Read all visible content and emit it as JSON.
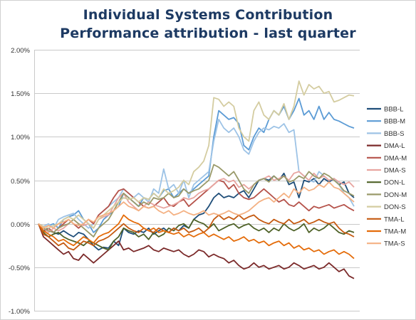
{
  "colors": {
    "title": "#1d3a63",
    "grid": "#c9c9c9",
    "axis_text": "#333333",
    "border": "#d0d0d0"
  },
  "chart_data": {
    "type": "line",
    "title": "Individual Systems Contribution",
    "subtitle": "Performance attribution - last quarter",
    "xlabel": "",
    "ylabel": "",
    "ylim": [
      -1.0,
      2.0
    ],
    "yticks": [
      2.0,
      1.5,
      1.0,
      0.5,
      0.0,
      -0.5,
      -1.0
    ],
    "ytick_labels": [
      "2.00%",
      "1.50%",
      "1.00%",
      "0.50%",
      "0.00%",
      "-0.50%",
      "-1.00%"
    ],
    "grid": true,
    "legend_position": "right",
    "x": [
      0,
      1,
      2,
      3,
      4,
      5,
      6,
      7,
      8,
      9,
      10,
      11,
      12,
      13,
      14,
      15,
      16,
      17,
      18,
      19,
      20,
      21,
      22,
      23,
      24,
      25,
      26,
      27,
      28,
      29,
      30,
      31,
      32,
      33,
      34,
      35,
      36,
      37,
      38,
      39,
      40,
      41,
      42,
      43,
      44,
      45,
      46,
      47,
      48,
      49,
      50,
      51,
      52,
      53,
      54,
      55,
      56,
      57,
      58,
      59,
      60,
      61,
      62,
      63
    ],
    "series": [
      {
        "name": "BBB-L",
        "color": "#1f4e79",
        "values": [
          0.0,
          -0.08,
          -0.05,
          -0.1,
          -0.12,
          -0.08,
          -0.12,
          -0.15,
          -0.1,
          -0.12,
          -0.18,
          -0.25,
          -0.3,
          -0.27,
          -0.28,
          -0.2,
          -0.25,
          -0.05,
          -0.1,
          -0.12,
          -0.08,
          -0.1,
          -0.05,
          -0.12,
          -0.08,
          -0.05,
          -0.1,
          -0.05,
          -0.08,
          -0.02,
          -0.05,
          0.05,
          0.1,
          0.12,
          0.2,
          0.3,
          0.35,
          0.3,
          0.32,
          0.3,
          0.35,
          0.38,
          0.3,
          0.4,
          0.5,
          0.52,
          0.5,
          0.55,
          0.5,
          0.58,
          0.45,
          0.48,
          0.3,
          0.5,
          0.48,
          0.52,
          0.45,
          0.52,
          0.48,
          0.52,
          0.45,
          0.48,
          0.35,
          0.3
        ]
      },
      {
        "name": "BBB-M",
        "color": "#5b9bd5",
        "values": [
          0.0,
          -0.05,
          -0.02,
          0.0,
          -0.05,
          0.05,
          0.08,
          0.1,
          0.15,
          0.05,
          0.0,
          -0.1,
          -0.05,
          0.05,
          0.1,
          0.15,
          0.2,
          0.35,
          0.3,
          0.25,
          0.2,
          0.3,
          0.28,
          0.35,
          0.3,
          0.38,
          0.4,
          0.3,
          0.35,
          0.4,
          0.35,
          0.4,
          0.45,
          0.5,
          0.55,
          1.0,
          1.3,
          1.25,
          1.2,
          1.22,
          1.15,
          0.9,
          0.85,
          1.0,
          1.1,
          1.05,
          1.2,
          1.3,
          1.25,
          1.35,
          1.2,
          1.3,
          1.44,
          1.25,
          1.3,
          1.2,
          1.35,
          1.2,
          1.28,
          1.2,
          1.18,
          1.15,
          1.12,
          1.1
        ]
      },
      {
        "name": "BBB-S",
        "color": "#9dc3e6",
        "values": [
          0.0,
          -0.03,
          0.0,
          -0.05,
          0.05,
          0.08,
          0.1,
          0.12,
          0.05,
          0.0,
          -0.05,
          0.0,
          0.1,
          0.15,
          0.2,
          0.25,
          0.3,
          0.4,
          0.35,
          0.3,
          0.35,
          0.3,
          0.25,
          0.4,
          0.35,
          0.63,
          0.4,
          0.45,
          0.35,
          0.5,
          0.3,
          0.45,
          0.5,
          0.55,
          0.6,
          0.95,
          1.2,
          1.1,
          1.05,
          1.1,
          1.0,
          0.85,
          0.8,
          0.95,
          1.05,
          1.1,
          1.08,
          1.12,
          1.1,
          1.15,
          1.05,
          1.08,
          0.6,
          0.55,
          0.5,
          0.48,
          0.6,
          0.55,
          0.5,
          0.52,
          0.45,
          0.35,
          0.3,
          0.2
        ]
      },
      {
        "name": "DMA-L",
        "color": "#7b2a2a",
        "values": [
          0.0,
          -0.15,
          -0.2,
          -0.25,
          -0.3,
          -0.35,
          -0.32,
          -0.4,
          -0.42,
          -0.35,
          -0.4,
          -0.45,
          -0.4,
          -0.35,
          -0.3,
          -0.25,
          -0.2,
          -0.3,
          -0.28,
          -0.32,
          -0.3,
          -0.28,
          -0.25,
          -0.3,
          -0.32,
          -0.28,
          -0.3,
          -0.32,
          -0.3,
          -0.35,
          -0.38,
          -0.35,
          -0.3,
          -0.32,
          -0.38,
          -0.35,
          -0.38,
          -0.4,
          -0.45,
          -0.42,
          -0.48,
          -0.52,
          -0.5,
          -0.45,
          -0.5,
          -0.48,
          -0.52,
          -0.5,
          -0.48,
          -0.52,
          -0.5,
          -0.45,
          -0.48,
          -0.52,
          -0.5,
          -0.48,
          -0.52,
          -0.5,
          -0.45,
          -0.5,
          -0.55,
          -0.52,
          -0.6,
          -0.63
        ]
      },
      {
        "name": "DMA-M",
        "color": "#b5524a",
        "values": [
          0.0,
          -0.1,
          -0.05,
          -0.1,
          -0.05,
          0.0,
          0.05,
          0.0,
          -0.05,
          0.0,
          0.05,
          0.0,
          0.1,
          0.15,
          0.2,
          0.3,
          0.38,
          0.4,
          0.35,
          0.3,
          0.25,
          0.2,
          0.18,
          0.2,
          0.25,
          0.3,
          0.22,
          0.2,
          0.25,
          0.28,
          0.2,
          0.25,
          0.3,
          0.35,
          0.4,
          0.45,
          0.5,
          0.48,
          0.4,
          0.45,
          0.35,
          0.3,
          0.28,
          0.3,
          0.35,
          0.4,
          0.35,
          0.3,
          0.25,
          0.28,
          0.22,
          0.2,
          0.25,
          0.2,
          0.15,
          0.2,
          0.18,
          0.2,
          0.22,
          0.18,
          0.2,
          0.22,
          0.18,
          0.15
        ]
      },
      {
        "name": "DMA-S",
        "color": "#e8a5a0",
        "values": [
          0.0,
          -0.05,
          -0.1,
          -0.05,
          -0.08,
          -0.05,
          0.0,
          0.05,
          0.0,
          -0.02,
          0.0,
          -0.05,
          0.05,
          0.08,
          0.1,
          0.2,
          0.3,
          0.35,
          0.25,
          0.2,
          0.15,
          0.2,
          0.25,
          0.22,
          0.2,
          0.18,
          0.2,
          0.22,
          0.25,
          0.3,
          0.28,
          0.3,
          0.35,
          0.38,
          0.4,
          0.45,
          0.5,
          0.52,
          0.48,
          0.5,
          0.42,
          0.45,
          0.4,
          0.45,
          0.5,
          0.52,
          0.55,
          0.5,
          0.52,
          0.55,
          0.5,
          0.58,
          0.6,
          0.55,
          0.5,
          0.58,
          0.52,
          0.55,
          0.5,
          0.52,
          0.48,
          0.45,
          0.48,
          0.42
        ]
      },
      {
        "name": "DON-L",
        "color": "#4f6228",
        "values": [
          0.0,
          -0.1,
          -0.15,
          -0.12,
          -0.1,
          -0.15,
          -0.18,
          -0.2,
          -0.22,
          -0.25,
          -0.2,
          -0.22,
          -0.25,
          -0.28,
          -0.3,
          -0.2,
          -0.15,
          -0.05,
          -0.08,
          -0.1,
          -0.15,
          -0.12,
          -0.18,
          -0.1,
          -0.15,
          -0.12,
          -0.05,
          -0.08,
          -0.02,
          0.0,
          -0.05,
          0.05,
          0.02,
          0.0,
          -0.05,
          0.0,
          -0.08,
          -0.05,
          -0.02,
          0.0,
          -0.05,
          -0.02,
          0.0,
          -0.05,
          -0.08,
          -0.05,
          -0.1,
          -0.05,
          -0.08,
          0.0,
          -0.05,
          -0.08,
          -0.05,
          0.0,
          -0.1,
          -0.05,
          -0.08,
          -0.05,
          0.0,
          -0.05,
          -0.1,
          -0.12,
          -0.08,
          -0.1
        ]
      },
      {
        "name": "DON-M",
        "color": "#9a9a6a",
        "values": [
          0.0,
          -0.05,
          -0.08,
          -0.1,
          -0.05,
          -0.02,
          0.0,
          0.05,
          0.0,
          -0.05,
          -0.1,
          -0.15,
          -0.05,
          0.0,
          0.05,
          0.15,
          0.25,
          0.35,
          0.3,
          0.25,
          0.2,
          0.25,
          0.22,
          0.3,
          0.28,
          0.3,
          0.35,
          0.3,
          0.32,
          0.4,
          0.35,
          0.38,
          0.4,
          0.45,
          0.5,
          0.68,
          0.65,
          0.6,
          0.55,
          0.6,
          0.5,
          0.4,
          0.35,
          0.45,
          0.5,
          0.52,
          0.48,
          0.55,
          0.5,
          0.55,
          0.48,
          0.5,
          0.55,
          0.52,
          0.6,
          0.55,
          0.52,
          0.58,
          0.55,
          0.5,
          0.45,
          0.38,
          0.35,
          0.32
        ]
      },
      {
        "name": "DON-S",
        "color": "#d4cca0",
        "values": [
          0.0,
          -0.03,
          -0.05,
          -0.02,
          0.0,
          0.05,
          0.08,
          0.05,
          0.1,
          0.05,
          0.0,
          -0.05,
          0.05,
          0.1,
          0.15,
          0.2,
          0.25,
          0.3,
          0.28,
          0.3,
          0.25,
          0.3,
          0.28,
          0.35,
          0.3,
          0.4,
          0.35,
          0.38,
          0.42,
          0.5,
          0.45,
          0.6,
          0.65,
          0.72,
          0.9,
          1.45,
          1.43,
          1.35,
          1.4,
          1.35,
          1.1,
          1.0,
          0.95,
          1.3,
          1.4,
          1.25,
          1.2,
          1.3,
          1.25,
          1.38,
          1.2,
          1.35,
          1.64,
          1.48,
          1.6,
          1.55,
          1.58,
          1.5,
          1.52,
          1.4,
          1.42,
          1.45,
          1.48,
          1.47
        ]
      },
      {
        "name": "TMA-L",
        "color": "#c55a11",
        "values": [
          0.0,
          -0.12,
          -0.15,
          -0.2,
          -0.25,
          -0.22,
          -0.28,
          -0.3,
          -0.25,
          -0.2,
          -0.22,
          -0.25,
          -0.2,
          -0.18,
          -0.15,
          -0.1,
          -0.05,
          0.0,
          -0.05,
          -0.08,
          -0.1,
          -0.05,
          -0.08,
          -0.1,
          -0.05,
          -0.08,
          -0.1,
          -0.05,
          -0.08,
          -0.05,
          -0.1,
          -0.08,
          -0.05,
          -0.1,
          -0.05,
          0.05,
          0.1,
          0.05,
          0.08,
          0.05,
          0.1,
          0.05,
          0.08,
          0.1,
          0.05,
          0.02,
          0.0,
          0.05,
          0.02,
          0.0,
          0.05,
          0.0,
          0.02,
          0.05,
          0.0,
          0.02,
          0.05,
          0.02,
          0.0,
          0.02,
          -0.05,
          -0.1,
          -0.12,
          -0.15
        ]
      },
      {
        "name": "TMA-M",
        "color": "#e46c0a",
        "values": [
          0.0,
          -0.08,
          -0.12,
          -0.15,
          -0.2,
          -0.18,
          -0.22,
          -0.25,
          -0.2,
          -0.15,
          -0.18,
          -0.22,
          -0.15,
          -0.12,
          -0.1,
          -0.05,
          0.0,
          0.1,
          0.05,
          0.02,
          0.0,
          -0.05,
          -0.08,
          -0.05,
          -0.1,
          -0.08,
          -0.1,
          -0.12,
          -0.1,
          -0.15,
          -0.12,
          -0.15,
          -0.12,
          -0.1,
          -0.15,
          -0.12,
          -0.15,
          -0.18,
          -0.15,
          -0.2,
          -0.18,
          -0.15,
          -0.2,
          -0.18,
          -0.22,
          -0.2,
          -0.25,
          -0.22,
          -0.2,
          -0.25,
          -0.22,
          -0.28,
          -0.25,
          -0.3,
          -0.28,
          -0.32,
          -0.3,
          -0.35,
          -0.32,
          -0.3,
          -0.35,
          -0.32,
          -0.35,
          -0.4
        ]
      },
      {
        "name": "TMA-S",
        "color": "#f4b183",
        "values": [
          0.0,
          -0.05,
          -0.02,
          -0.05,
          0.0,
          0.02,
          0.05,
          0.0,
          -0.02,
          0.0,
          0.05,
          0.02,
          0.08,
          0.1,
          0.12,
          0.15,
          0.2,
          0.25,
          0.2,
          0.18,
          0.15,
          0.2,
          0.18,
          0.2,
          0.15,
          0.12,
          0.15,
          0.1,
          0.12,
          0.15,
          0.12,
          0.1,
          0.12,
          0.15,
          0.1,
          0.12,
          0.1,
          0.12,
          0.15,
          0.12,
          0.1,
          0.12,
          0.15,
          0.2,
          0.25,
          0.28,
          0.3,
          0.25,
          0.3,
          0.35,
          0.3,
          0.4,
          0.35,
          0.42,
          0.38,
          0.4,
          0.45,
          0.42,
          0.48,
          0.42,
          0.4,
          0.35,
          0.3,
          0.25
        ]
      }
    ]
  }
}
